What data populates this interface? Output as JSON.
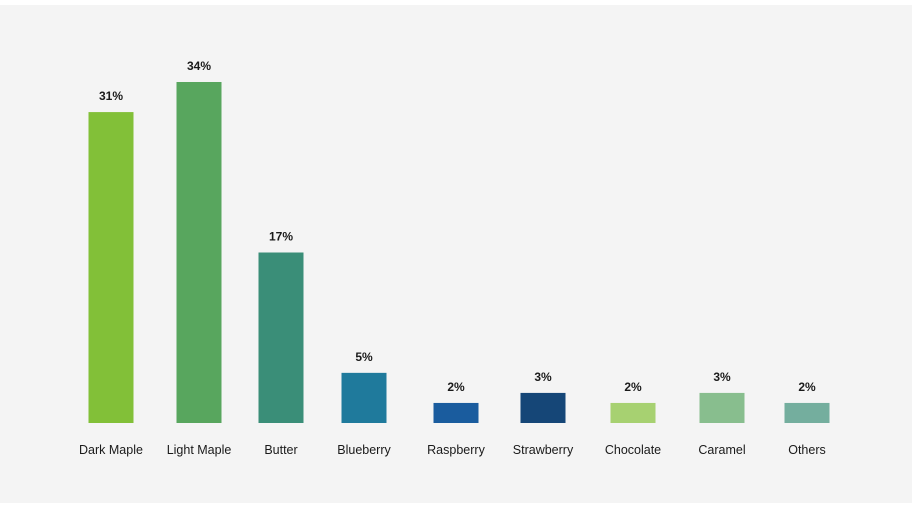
{
  "chart_data": {
    "type": "bar",
    "categories": [
      "Dark Maple",
      "Light Maple",
      "Butter",
      "Blueberry",
      "Raspberry",
      "Strawberry",
      "Chocolate",
      "Caramel",
      "Others"
    ],
    "values": [
      31,
      34,
      17,
      5,
      2,
      3,
      2,
      3,
      2
    ],
    "value_labels": [
      "31%",
      "34%",
      "17%",
      "5%",
      "2%",
      "3%",
      "2%",
      "3%",
      "2%"
    ],
    "colors": [
      "#82c038",
      "#58a65e",
      "#3a8e78",
      "#1f7a9c",
      "#1a5c9e",
      "#154677",
      "#a7d171",
      "#88be8e",
      "#74ae9e"
    ],
    "ylim": [
      0,
      34
    ],
    "grid": false,
    "legend": "none",
    "title": "",
    "xlabel": "",
    "ylabel": ""
  }
}
